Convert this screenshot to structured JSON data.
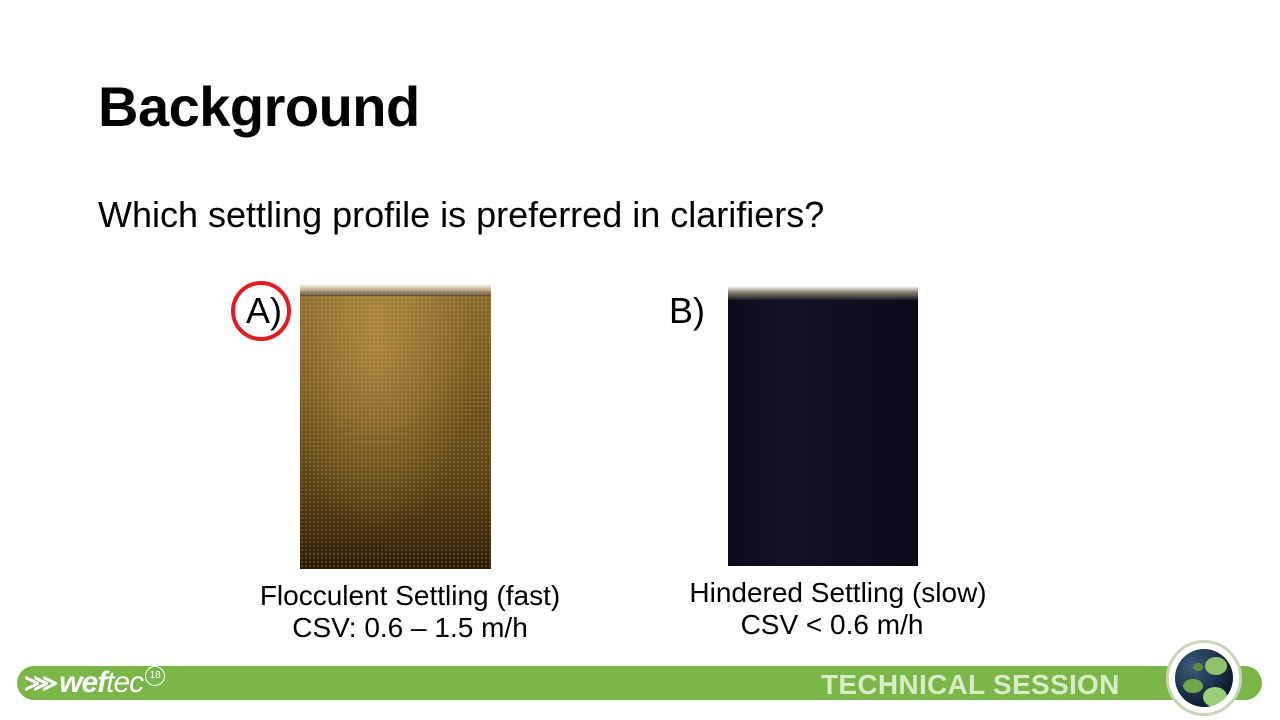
{
  "slide": {
    "title": "Background",
    "question": "Which settling profile is preferred in clarifiers?"
  },
  "options": [
    {
      "letter": "A)",
      "caption_line1": "Flocculent Settling (fast)",
      "caption_line2": "CSV: 0.6 – 1.5 m/h",
      "selected": true,
      "image_color": "#6b4e1a"
    },
    {
      "letter": "B)",
      "caption_line1": "Hindered Settling (slow)",
      "caption_line2": "CSV < 0.6 m/h",
      "selected": false,
      "image_color": "#0e0e20"
    }
  ],
  "footer": {
    "logo_text_bold": "wef",
    "logo_text_light": "tec",
    "logo_year": "18",
    "session_label": "TECHNICAL SESSION",
    "accent_color": "#7ab648",
    "selection_color": "#e31b23"
  }
}
